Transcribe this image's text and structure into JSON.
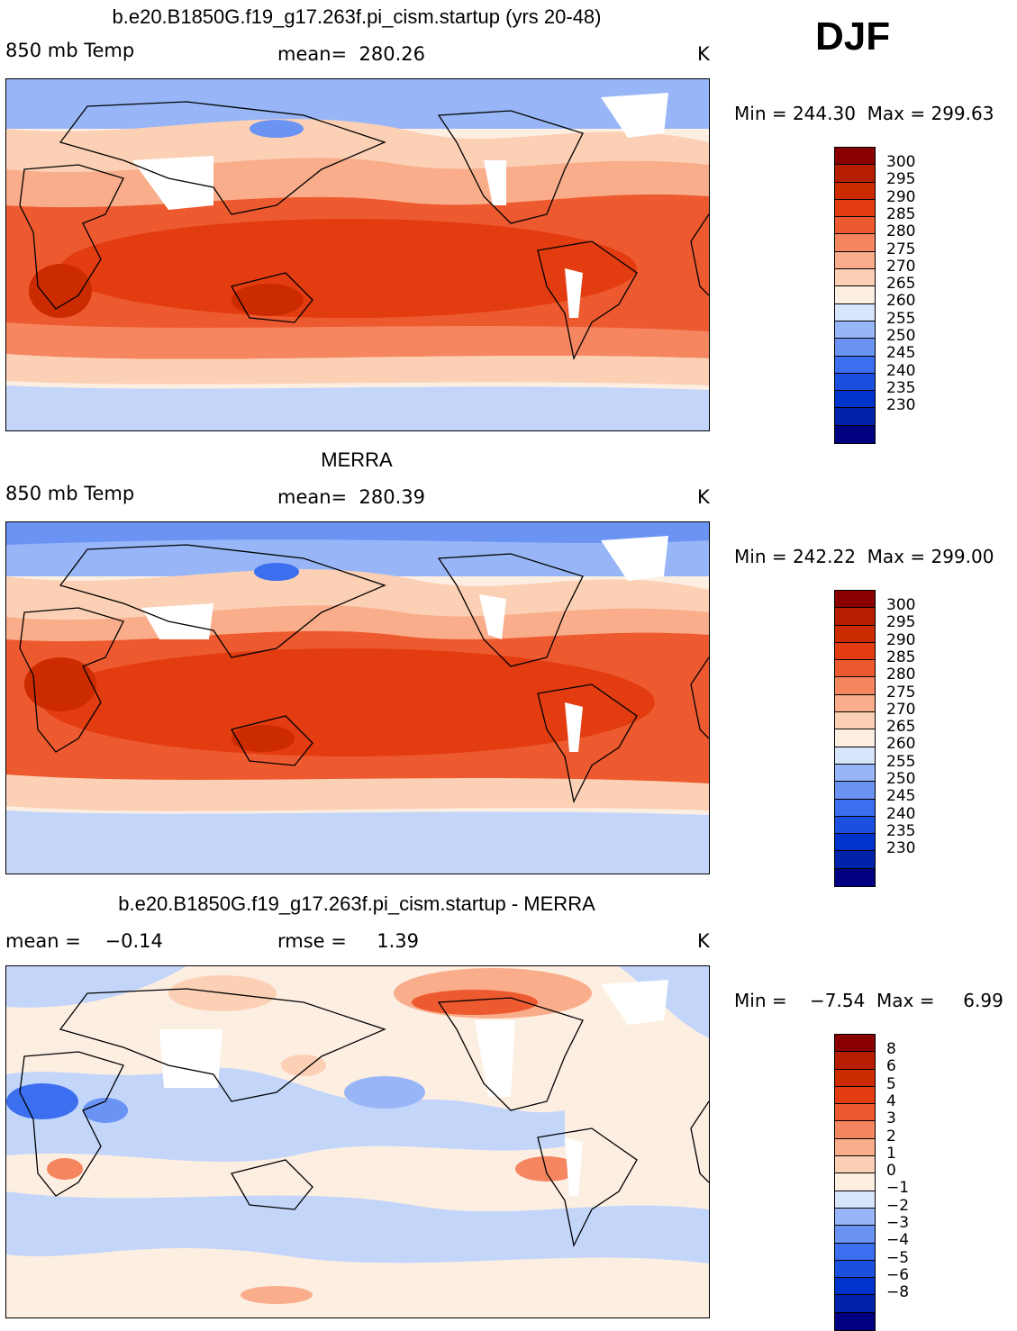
{
  "season": "DJF",
  "colors": {
    "levels_abs": [
      "#000080",
      "#0022aa",
      "#0033cc",
      "#1a4fe0",
      "#3b6fef",
      "#6a93f4",
      "#98b6f7",
      "#c3d6fa",
      "#e6eefc",
      "#fdeee2",
      "#fcd0b5",
      "#f9ad8a",
      "#f58660",
      "#ee5a30",
      "#e23c10",
      "#cc2b00",
      "#8a0000"
    ],
    "levels_diff": [
      "#000080",
      "#0022aa",
      "#0033cc",
      "#1a4fe0",
      "#3b6fef",
      "#6a93f4",
      "#98b6f7",
      "#c3d6fa",
      "#e6eefc",
      "#fdeee2",
      "#fcd0b5",
      "#f9ad8a",
      "#f58660",
      "#ee5a30",
      "#e23c10",
      "#cc2b00",
      "#8a0000"
    ]
  },
  "panels": [
    {
      "title": "b.e20.B1850G.f19_g17.263f.pi_cism.startup (yrs 20-48)",
      "left_label": "850 mb Temp",
      "center_label": "mean=  280.26",
      "units": "K",
      "minmax": "Min = 244.30  Max = 299.63",
      "cbar_labels": [
        "300",
        "295",
        "290",
        "285",
        "280",
        "275",
        "270",
        "265",
        "260",
        "255",
        "250",
        "245",
        "240",
        "235",
        "230"
      ]
    },
    {
      "title": "MERRA",
      "left_label": "850 mb Temp",
      "center_label": "mean=  280.39",
      "units": "K",
      "minmax": "Min = 242.22  Max = 299.00",
      "cbar_labels": [
        "300",
        "295",
        "290",
        "285",
        "280",
        "275",
        "270",
        "265",
        "260",
        "255",
        "250",
        "245",
        "240",
        "235",
        "230"
      ]
    },
    {
      "title": "b.e20.B1850G.f19_g17.263f.pi_cism.startup - MERRA",
      "left_label": "mean =    −0.14",
      "center_label": "rmse =     1.39",
      "units": "K",
      "minmax": "Min =    −7.54  Max =     6.99",
      "cbar_labels": [
        "8",
        "6",
        "5",
        "4",
        "3",
        "2",
        "1",
        "0",
        "−1",
        "−2",
        "−3",
        "−4",
        "−5",
        "−6",
        "−8"
      ]
    }
  ]
}
